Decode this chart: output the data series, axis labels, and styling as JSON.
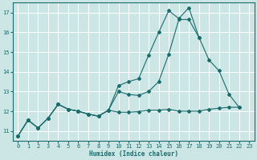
{
  "xlabel": "Humidex (Indice chaleur)",
  "ylabel": "",
  "bg_color": "#cce5e5",
  "grid_color": "#ffffff",
  "line_color": "#1a6b6b",
  "xlim": [
    -0.5,
    23.5
  ],
  "ylim": [
    10.5,
    17.5
  ],
  "yticks": [
    11,
    12,
    13,
    14,
    15,
    16,
    17
  ],
  "xticks": [
    0,
    1,
    2,
    3,
    4,
    5,
    6,
    7,
    8,
    9,
    10,
    11,
    12,
    13,
    14,
    15,
    16,
    17,
    18,
    19,
    20,
    21,
    22,
    23
  ],
  "line1_x": [
    0,
    1,
    2,
    3,
    4,
    5,
    6,
    7,
    8,
    9,
    10,
    11,
    12,
    13,
    14,
    15,
    16,
    17,
    18,
    19,
    20,
    21,
    22
  ],
  "line1_y": [
    10.75,
    11.55,
    11.15,
    11.65,
    12.35,
    12.1,
    12.0,
    11.85,
    11.75,
    12.05,
    13.0,
    12.85,
    12.8,
    13.0,
    13.5,
    14.9,
    16.65,
    16.65,
    15.75,
    14.6,
    14.05,
    12.85,
    12.2
  ],
  "line2_x": [
    0,
    1,
    2,
    3,
    4,
    5,
    6,
    7,
    8,
    9,
    10,
    11,
    12,
    13,
    14,
    15,
    16,
    17,
    18
  ],
  "line2_y": [
    10.75,
    11.55,
    11.15,
    11.65,
    12.35,
    12.1,
    12.0,
    11.85,
    11.75,
    12.05,
    13.3,
    13.5,
    13.65,
    14.85,
    16.0,
    17.1,
    16.7,
    17.25,
    15.75
  ],
  "line3_x": [
    0,
    1,
    2,
    3,
    4,
    5,
    6,
    7,
    8,
    9,
    10,
    11,
    12,
    13,
    14,
    15,
    16,
    17,
    18,
    19,
    20,
    21,
    22
  ],
  "line3_y": [
    10.75,
    11.55,
    11.15,
    11.65,
    12.35,
    12.1,
    12.0,
    11.85,
    11.75,
    12.05,
    11.95,
    11.95,
    11.98,
    12.05,
    12.05,
    12.1,
    12.0,
    12.0,
    12.0,
    12.1,
    12.15,
    12.2,
    12.2
  ]
}
